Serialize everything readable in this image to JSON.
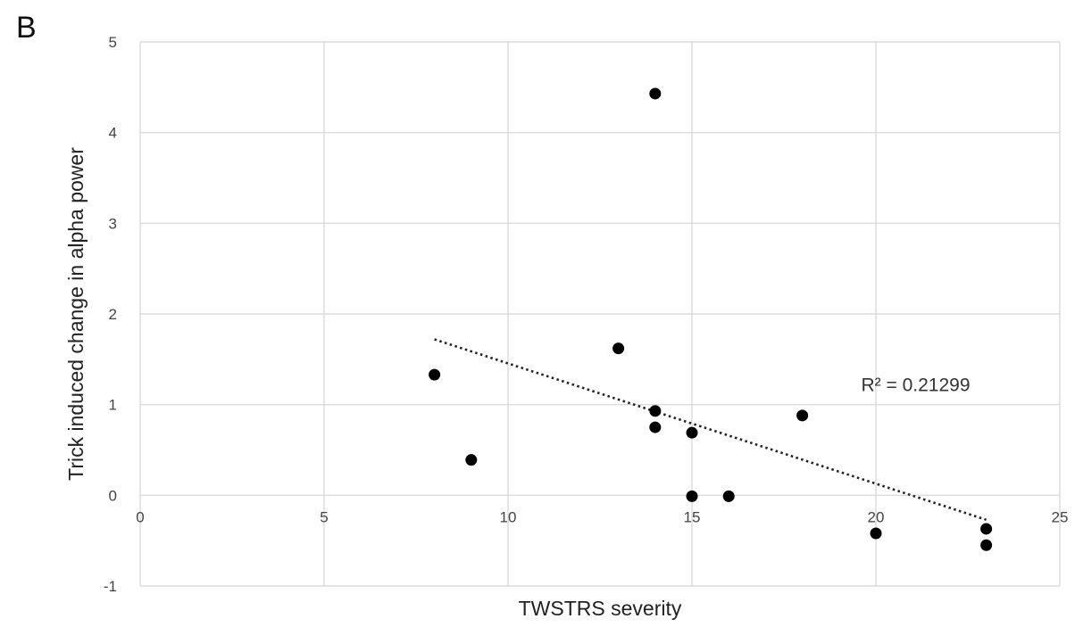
{
  "panel_label": "B",
  "chart_data": {
    "type": "scatter",
    "title": "",
    "xlabel": "TWSTRS severity",
    "ylabel": "Trick induced change in alpha power",
    "xlim": [
      0,
      25
    ],
    "ylim": [
      -1,
      5
    ],
    "x_ticks": [
      "0",
      "5",
      "10",
      "15",
      "20",
      "25"
    ],
    "y_ticks": [
      "-1",
      "0",
      "1",
      "2",
      "3",
      "4",
      "5"
    ],
    "grid": true,
    "x_tick_values": [
      0,
      5,
      10,
      15,
      20,
      25
    ],
    "y_tick_values": [
      -1,
      0,
      1,
      2,
      3,
      4,
      5
    ],
    "series": [
      {
        "points": [
          {
            "x": 8,
            "y": 1.33
          },
          {
            "x": 9,
            "y": 0.39
          },
          {
            "x": 13,
            "y": 1.62
          },
          {
            "x": 14,
            "y": 4.43
          },
          {
            "x": 14,
            "y": 0.93
          },
          {
            "x": 14,
            "y": 0.75
          },
          {
            "x": 15,
            "y": 0.69
          },
          {
            "x": 15,
            "y": -0.01
          },
          {
            "x": 16,
            "y": -0.01
          },
          {
            "x": 18,
            "y": 0.88
          },
          {
            "x": 20,
            "y": -0.42
          },
          {
            "x": 23,
            "y": -0.37
          },
          {
            "x": 23,
            "y": -0.55
          }
        ]
      }
    ],
    "trendline": {
      "style": "dotted",
      "x0": 8,
      "y0": 1.72,
      "x1": 23,
      "y1": -0.27,
      "label": "R² = 0.21299",
      "label_x": 19.6,
      "label_y": 1.15
    },
    "colors": {
      "points": "#000000",
      "grid": "#d4d4d4",
      "trendline": "#222222"
    }
  }
}
